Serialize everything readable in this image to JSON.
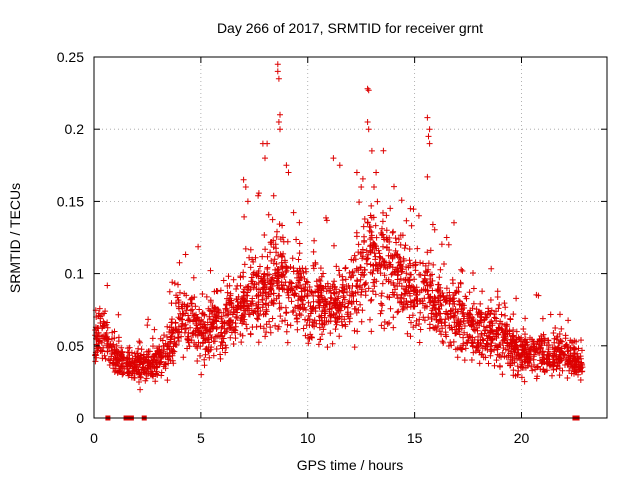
{
  "chart_data": {
    "type": "scatter",
    "title": "Day 266 of 2017, SRMTID for receiver grnt",
    "xlabel": "GPS time / hours",
    "ylabel": "SRMTID / TECUs",
    "xlim": [
      0,
      24
    ],
    "ylim": [
      0,
      0.25
    ],
    "x_ticks": [
      0,
      5,
      10,
      15,
      20
    ],
    "x_tick_labels": [
      "0",
      "5",
      "10",
      "15",
      "20"
    ],
    "y_ticks": [
      0,
      0.05,
      0.1,
      0.15,
      0.2,
      0.25
    ],
    "y_tick_labels": [
      "0",
      "0.05",
      "0.1",
      "0.15",
      "0.2",
      "0.25"
    ],
    "grid": true,
    "marker": "plus",
    "color": "#dd0000",
    "series": [
      {
        "name": "SRMTID",
        "baseline_profile": {
          "hours": [
            0,
            0.5,
            1,
            2,
            3,
            3.7,
            4,
            5,
            6,
            7,
            8,
            8.6,
            9,
            10,
            11,
            12,
            12.8,
            13,
            14,
            15,
            15.7,
            16,
            17,
            18,
            19,
            20,
            21,
            22,
            22.8
          ],
          "values": [
            0.055,
            0.06,
            0.04,
            0.035,
            0.04,
            0.055,
            0.07,
            0.06,
            0.065,
            0.08,
            0.085,
            0.1,
            0.09,
            0.08,
            0.075,
            0.085,
            0.11,
            0.115,
            0.1,
            0.085,
            0.09,
            0.075,
            0.07,
            0.06,
            0.055,
            0.045,
            0.045,
            0.045,
            0.035
          ]
        },
        "peak_points": [
          {
            "x": 8.6,
            "y": 0.245
          },
          {
            "x": 8.6,
            "y": 0.24
          },
          {
            "x": 8.65,
            "y": 0.235
          },
          {
            "x": 8.7,
            "y": 0.21
          },
          {
            "x": 8.65,
            "y": 0.205
          },
          {
            "x": 8.7,
            "y": 0.2
          },
          {
            "x": 12.8,
            "y": 0.228
          },
          {
            "x": 12.85,
            "y": 0.227
          },
          {
            "x": 12.8,
            "y": 0.205
          },
          {
            "x": 12.85,
            "y": 0.2
          },
          {
            "x": 15.6,
            "y": 0.208
          },
          {
            "x": 15.7,
            "y": 0.2
          },
          {
            "x": 15.65,
            "y": 0.195
          },
          {
            "x": 15.7,
            "y": 0.19
          },
          {
            "x": 15.6,
            "y": 0.167
          },
          {
            "x": 7.9,
            "y": 0.19
          },
          {
            "x": 8.0,
            "y": 0.18
          },
          {
            "x": 8.1,
            "y": 0.19
          },
          {
            "x": 7.0,
            "y": 0.165
          },
          {
            "x": 7.1,
            "y": 0.16
          },
          {
            "x": 7.2,
            "y": 0.15
          },
          {
            "x": 9.0,
            "y": 0.175
          },
          {
            "x": 9.1,
            "y": 0.17
          },
          {
            "x": 11.2,
            "y": 0.18
          },
          {
            "x": 11.5,
            "y": 0.175
          },
          {
            "x": 12.3,
            "y": 0.17
          },
          {
            "x": 12.5,
            "y": 0.16
          },
          {
            "x": 13.1,
            "y": 0.16
          },
          {
            "x": 13.0,
            "y": 0.185
          },
          {
            "x": 13.2,
            "y": 0.17
          },
          {
            "x": 14.8,
            "y": 0.145
          },
          {
            "x": 15.2,
            "y": 0.14
          },
          {
            "x": 16.5,
            "y": 0.125
          },
          {
            "x": 16.6,
            "y": 0.12
          }
        ],
        "zero_points": [
          {
            "x": 0.65,
            "y": 0
          },
          {
            "x": 1.5,
            "y": 0
          },
          {
            "x": 1.6,
            "y": 0
          },
          {
            "x": 1.75,
            "y": 0
          },
          {
            "x": 2.35,
            "y": 0
          },
          {
            "x": 22.5,
            "y": 0
          },
          {
            "x": 22.6,
            "y": 0
          }
        ]
      }
    ]
  }
}
